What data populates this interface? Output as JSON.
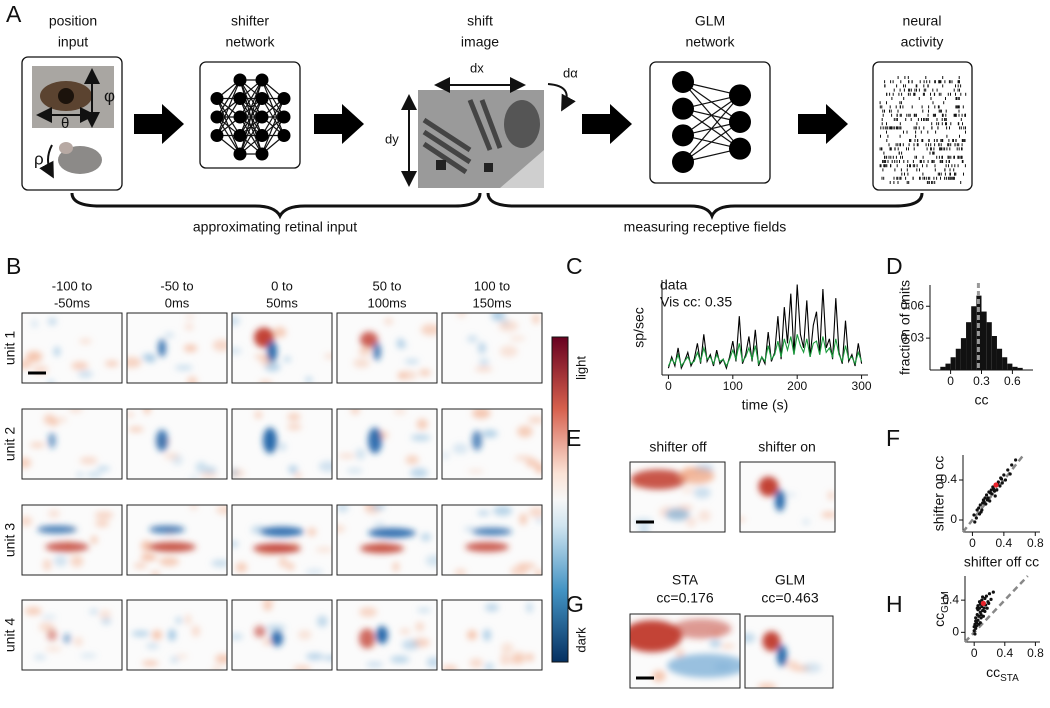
{
  "figure": {
    "panel_labels": [
      "A",
      "B",
      "C",
      "D",
      "E",
      "F",
      "G",
      "H"
    ],
    "a": {
      "stages": [
        [
          "position",
          "input"
        ],
        [
          "shifter",
          "network"
        ],
        [
          "shift",
          "image"
        ],
        [
          "GLM",
          "network"
        ],
        [
          "neural",
          "activity"
        ]
      ],
      "symbols": {
        "phi": "φ",
        "theta": "θ",
        "rho": "ρ",
        "dx": "dx",
        "dy": "dy",
        "dalpha": "dα"
      },
      "braces": [
        "approximating retinal input",
        "measuring receptive fields"
      ]
    },
    "b": {
      "columns": [
        [
          "-100 to",
          "-50ms"
        ],
        [
          "-50 to",
          "0ms"
        ],
        [
          "0 to",
          "50ms"
        ],
        [
          "50 to",
          "100ms"
        ],
        [
          "100 to",
          "150ms"
        ]
      ],
      "units": [
        "unit 1",
        "unit 2",
        "unit 3",
        "unit 4"
      ],
      "colorbar": [
        "light",
        "dark"
      ]
    },
    "e": {
      "titles": [
        "shifter off",
        "shifter on"
      ]
    },
    "g": {
      "titles": [
        [
          "STA",
          "cc=0.176"
        ],
        [
          "GLM",
          "cc=0.463"
        ]
      ]
    }
  },
  "chart_data": [
    {
      "type": "line",
      "y_label": "sp/sec",
      "x_label": "time (s)",
      "x": [
        0,
        5,
        10,
        15,
        20,
        25,
        30,
        35,
        40,
        45,
        50,
        55,
        60,
        65,
        70,
        75,
        80,
        85,
        90,
        95,
        100,
        105,
        110,
        115,
        120,
        125,
        130,
        135,
        140,
        145,
        150,
        155,
        160,
        165,
        170,
        175,
        180,
        185,
        190,
        195,
        200,
        205,
        210,
        215,
        220,
        225,
        230,
        235,
        240,
        245,
        250,
        255,
        260,
        265,
        270,
        275,
        280,
        285,
        290,
        295,
        300
      ],
      "series": [
        {
          "name": "data",
          "color": "#000000",
          "values": [
            3,
            8,
            4,
            12,
            3,
            6,
            10,
            4,
            7,
            14,
            5,
            18,
            6,
            9,
            4,
            11,
            5,
            7,
            3,
            8,
            15,
            6,
            26,
            5,
            9,
            17,
            6,
            20,
            4,
            8,
            5,
            19,
            6,
            10,
            26,
            7,
            30,
            14,
            36,
            9,
            40,
            18,
            12,
            33,
            8,
            22,
            28,
            9,
            38,
            12,
            16,
            7,
            34,
            10,
            5,
            24,
            6,
            9,
            4,
            14,
            5
          ]
        },
        {
          "name": "Vis cc: 0.35",
          "color": "#1a9b3c",
          "values": [
            4,
            7,
            5,
            9,
            4,
            6,
            8,
            5,
            6,
            10,
            6,
            12,
            7,
            8,
            5,
            9,
            6,
            7,
            4,
            7,
            11,
            7,
            14,
            6,
            8,
            12,
            7,
            13,
            5,
            8,
            6,
            13,
            7,
            9,
            15,
            8,
            16,
            11,
            17,
            9,
            18,
            13,
            10,
            16,
            8,
            14,
            15,
            9,
            17,
            10,
            12,
            8,
            16,
            9,
            6,
            13,
            7,
            8,
            5,
            10,
            6
          ]
        }
      ],
      "xlim": [
        -10,
        310
      ],
      "xticks": [
        0,
        100,
        200,
        300
      ],
      "ylim": [
        0,
        42
      ]
    },
    {
      "type": "histogram",
      "y_label": "fraction of units",
      "x_label": "cc",
      "color": "#111111",
      "bins": [
        -0.1,
        -0.05,
        0,
        0.05,
        0.1,
        0.15,
        0.2,
        0.25,
        0.3,
        0.35,
        0.4,
        0.45,
        0.5,
        0.55,
        0.6,
        0.65,
        0.7
      ],
      "values": [
        0.003,
        0.006,
        0.012,
        0.02,
        0.03,
        0.045,
        0.06,
        0.07,
        0.055,
        0.045,
        0.032,
        0.02,
        0.012,
        0.006,
        0.003,
        0.002
      ],
      "median_line": 0.27,
      "xlim": [
        -0.2,
        0.8
      ],
      "xticks": [
        0,
        0.3,
        0.6
      ],
      "ylim": [
        0,
        0.08
      ],
      "yticks": [
        0.03,
        0.06
      ]
    },
    {
      "type": "scatter",
      "y_label": "shifter on cc",
      "x_label": "shifter off cc",
      "color": "#111111",
      "highlight_color": "#e8222a",
      "highlight": 16,
      "diagonal": true,
      "x": [
        0.02,
        0.05,
        0.08,
        0.1,
        0.12,
        0.14,
        0.15,
        0.17,
        0.18,
        0.2,
        0.21,
        0.22,
        0.24,
        0.25,
        0.26,
        0.28,
        0.3,
        0.31,
        0.33,
        0.35,
        0.36,
        0.38,
        0.4,
        0.42,
        0.45,
        0.48,
        0.5,
        0.06,
        0.11,
        0.16,
        0.19,
        0.23,
        0.27,
        0.29,
        0.32,
        0.37,
        0.03,
        0.09,
        0.13,
        0.55
      ],
      "values": [
        0.05,
        0.02,
        0.12,
        0.15,
        0.1,
        0.2,
        0.18,
        0.16,
        0.25,
        0.22,
        0.28,
        0.19,
        0.3,
        0.26,
        0.33,
        0.29,
        0.35,
        0.3,
        0.38,
        0.34,
        0.42,
        0.37,
        0.45,
        0.4,
        0.5,
        0.46,
        0.55,
        0.1,
        0.08,
        0.22,
        0.2,
        0.27,
        0.31,
        0.24,
        0.36,
        0.41,
        -0.02,
        0.06,
        0.17,
        0.6
      ],
      "xlim": [
        -0.12,
        0.86
      ],
      "xticks": [
        0,
        0.4,
        0.8
      ],
      "ylim": [
        -0.12,
        0.65
      ],
      "yticks": [
        0,
        0.4
      ]
    },
    {
      "type": "scatter",
      "y_label": {
        "text": "cc",
        "sub": "GLM"
      },
      "x_label": {
        "text": "cc",
        "sub": "STA"
      },
      "color": "#111111",
      "highlight_color": "#e8222a",
      "highlight": 16,
      "diagonal": true,
      "x": [
        0,
        0.01,
        0.02,
        0.02,
        0.03,
        0.04,
        0.05,
        0.05,
        0.06,
        0.07,
        0.08,
        0.08,
        0.09,
        0.1,
        0.1,
        0.11,
        0.12,
        0.13,
        0.14,
        0.15,
        0.16,
        0.18,
        0.2,
        0.22,
        0.25,
        0.03,
        0.04,
        0.06,
        0.07,
        0.09,
        0.01,
        0.02,
        0.05,
        0.11,
        0.12,
        0.14,
        0.17,
        0.19,
        0,
        0.08
      ],
      "values": [
        0.02,
        0.1,
        0.05,
        0.18,
        0.12,
        0.22,
        0.15,
        0.28,
        0.2,
        0.3,
        0.25,
        0.35,
        0.18,
        0.32,
        0.4,
        0.27,
        0.36,
        0.3,
        0.42,
        0.34,
        0.45,
        0.38,
        0.48,
        0.41,
        0.5,
        0.08,
        0.3,
        0.1,
        0.38,
        0.22,
        -0.02,
        0.14,
        0.33,
        0.44,
        0.2,
        0.26,
        0.3,
        0.36,
        0.07,
        0.12
      ],
      "xlim": [
        -0.12,
        0.86
      ],
      "xticks": [
        0,
        0.4,
        0.8
      ],
      "ylim": [
        -0.12,
        0.7
      ],
      "yticks": [
        0,
        0.4
      ]
    }
  ]
}
